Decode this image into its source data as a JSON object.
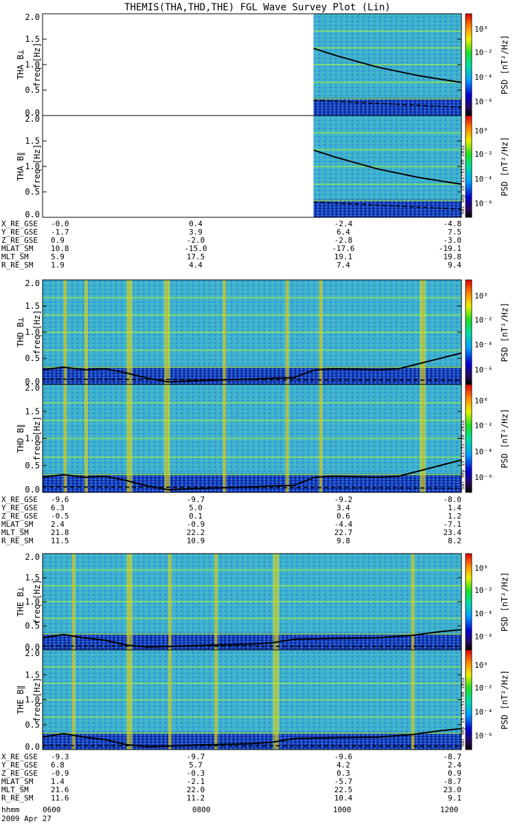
{
  "title": "THEMIS(THA,THD,THE) FGL Wave Survey Plot (Lin)",
  "ylabel": "freq [Hz]",
  "colorbar_label": "PSD [nT²/Hz]",
  "colorbar_ticks": [
    "10⁰",
    "10⁻²",
    "10⁻⁴",
    "10⁻⁶"
  ],
  "stamp": "Sat Sep 15 11:51:36 2012",
  "freq_ticks": [
    "0.0",
    "0.5",
    "1.0",
    "1.5",
    "2.0"
  ],
  "chart_data": [
    {
      "type": "heatmap",
      "probe": "THA",
      "panels": [
        {
          "name": "THA B⊥",
          "ylabel": "freq [Hz]",
          "data_start": 0.647,
          "ylim": [
            0,
            2
          ]
        },
        {
          "name": "THA B∥",
          "ylabel": "freq [Hz]",
          "data_start": 0.647,
          "ylim": [
            0,
            2
          ]
        }
      ],
      "overlay_curve": [
        [
          0.647,
          1.32
        ],
        [
          0.7,
          1.18
        ],
        [
          0.8,
          0.95
        ],
        [
          0.9,
          0.78
        ],
        [
          1.0,
          0.65
        ]
      ],
      "dashed_curve": [
        [
          0.647,
          0.3
        ],
        [
          1.0,
          0.16
        ]
      ],
      "ephemeris": {
        "labels": [
          "X_RE_GSE",
          "Y_RE_GSE",
          "Z_RE_GSE",
          "MLAT_SM",
          "MLT_SM",
          "R_RE_SM"
        ],
        "columns": [
          [
            "-0.0",
            "-1.7",
            "0.9",
            "10.8",
            "5.9",
            "1.9"
          ],
          [
            "0.4",
            "3.9",
            "-2.0",
            "-15.0",
            "17.5",
            "4.4"
          ],
          [
            "-2.4",
            "6.4",
            "-2.8",
            "-17.6",
            "19.1",
            "7.4"
          ],
          [
            "-4.8",
            "7.5",
            "-3.0",
            "-19.1",
            "19.8",
            "9.4"
          ]
        ]
      }
    },
    {
      "type": "heatmap",
      "probe": "THD",
      "panels": [
        {
          "name": "THD B⊥",
          "ylabel": "freq [Hz]",
          "data_start": 0,
          "ylim": [
            0,
            2
          ]
        },
        {
          "name": "THD B∥",
          "ylabel": "freq [Hz]",
          "data_start": 0,
          "ylim": [
            0,
            2
          ]
        }
      ],
      "bursts": [
        0.05,
        0.29,
        0.66,
        0.1,
        0.2,
        0.43,
        0.58,
        0.9
      ],
      "overlay_curve": [
        [
          0,
          0.28
        ],
        [
          0.05,
          0.33
        ],
        [
          0.1,
          0.28
        ],
        [
          0.15,
          0.3
        ],
        [
          0.2,
          0.22
        ],
        [
          0.25,
          0.12
        ],
        [
          0.3,
          0.05
        ],
        [
          0.4,
          0.08
        ],
        [
          0.5,
          0.1
        ],
        [
          0.55,
          0.12
        ],
        [
          0.6,
          0.13
        ],
        [
          0.65,
          0.28
        ],
        [
          0.7,
          0.3
        ],
        [
          0.8,
          0.28
        ],
        [
          0.85,
          0.3
        ],
        [
          0.9,
          0.4
        ],
        [
          1.0,
          0.6
        ]
      ],
      "dashed_curve": [
        [
          0,
          0.1
        ],
        [
          1.0,
          0.08
        ]
      ],
      "ephemeris": {
        "labels": [
          "X_RE_GSE",
          "Y_RE_GSE",
          "Z_RE_GSE",
          "MLAT_SM",
          "MLT_SM",
          "R_RE_SM"
        ],
        "columns": [
          [
            "-9.6",
            "6.3",
            "-0.5",
            "2.4",
            "21.8",
            "11.5"
          ],
          [
            "-9.7",
            "5.0",
            "0.1",
            "-0.9",
            "22.2",
            "10.9"
          ],
          [
            "-9.2",
            "3.4",
            "0.6",
            "-4.4",
            "22.7",
            "9.8"
          ],
          [
            "-8.0",
            "1.4",
            "1.2",
            "-7.1",
            "23.4",
            "8.2"
          ]
        ]
      }
    },
    {
      "type": "heatmap",
      "probe": "THE",
      "panels": [
        {
          "name": "THE B⊥",
          "ylabel": "freq [Hz]",
          "data_start": 0,
          "ylim": [
            0,
            2
          ]
        },
        {
          "name": "THE B∥",
          "ylabel": "freq [Hz]",
          "data_start": 0,
          "ylim": [
            0,
            2
          ]
        }
      ],
      "bursts": [
        0.07,
        0.2,
        0.3,
        0.41,
        0.55,
        0.88
      ],
      "overlay_curve": [
        [
          0,
          0.25
        ],
        [
          0.05,
          0.32
        ],
        [
          0.1,
          0.25
        ],
        [
          0.15,
          0.2
        ],
        [
          0.2,
          0.1
        ],
        [
          0.25,
          0.06
        ],
        [
          0.3,
          0.07
        ],
        [
          0.4,
          0.1
        ],
        [
          0.5,
          0.12
        ],
        [
          0.55,
          0.15
        ],
        [
          0.6,
          0.22
        ],
        [
          0.7,
          0.24
        ],
        [
          0.8,
          0.25
        ],
        [
          0.88,
          0.3
        ],
        [
          0.95,
          0.38
        ],
        [
          1.0,
          0.42
        ]
      ],
      "dashed_curve": [
        [
          0,
          0.08
        ],
        [
          1.0,
          0.07
        ]
      ],
      "ephemeris": {
        "labels": [
          "X_RE_GSE",
          "Y_RE_GSE",
          "Z_RE_GSE",
          "MLAT_SM",
          "MLT_SM",
          "R_RE_SM"
        ],
        "columns": [
          [
            "-9.3",
            "6.8",
            "-0.9",
            "1.4",
            "21.6",
            "11.6"
          ],
          [
            "-9.7",
            "5.7",
            "-0.3",
            "-2.1",
            "22.0",
            "11.2"
          ],
          [
            "-9.6",
            "4.2",
            "0.3",
            "-5.7",
            "22.5",
            "10.4"
          ],
          [
            "-8.7",
            "2.4",
            "0.9",
            "-8.7",
            "23.0",
            "9.1"
          ]
        ]
      }
    }
  ],
  "time_axis": {
    "label": "hhmm",
    "ticks": [
      "0600",
      "0800",
      "1000",
      "1200"
    ],
    "date": "2009 Apr 27"
  }
}
